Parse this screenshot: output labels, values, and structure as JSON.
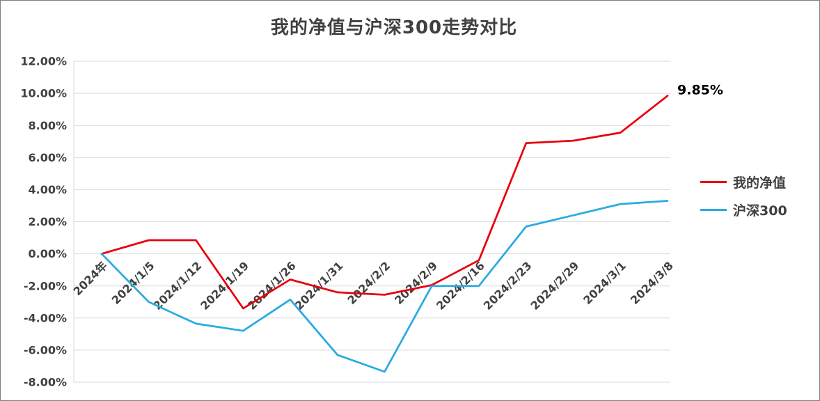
{
  "chart_data": {
    "type": "line",
    "title": "我的净值与沪深300走势对比",
    "categories": [
      "2024年",
      "2024/1/5",
      "2024/1/12",
      "2024/1/19",
      "2024/1/26",
      "2024/1/31",
      "2024/2/2",
      "2024/2/9",
      "2024/2/16",
      "2024/2/23",
      "2024/2/29",
      "2024/3/1",
      "2024/3/8"
    ],
    "series": [
      {
        "name": "我的净值",
        "color": "#e8000d",
        "values": [
          0,
          0.85,
          0.85,
          -3.4,
          -1.6,
          -2.4,
          -2.55,
          -1.95,
          -0.4,
          6.9,
          7.05,
          7.55,
          9.85
        ]
      },
      {
        "name": "沪深300",
        "color": "#29abe2",
        "values": [
          0,
          -3.0,
          -4.35,
          -4.8,
          -2.85,
          -6.3,
          -7.35,
          -2.0,
          -2.0,
          1.7,
          2.4,
          3.1,
          3.3
        ]
      }
    ],
    "ylim": [
      -8,
      12
    ],
    "ytick_step": 2,
    "ytick_labels": [
      "12.00%",
      "10.00%",
      "8.00%",
      "6.00%",
      "4.00%",
      "2.00%",
      "0.00%",
      "-2.00%",
      "-4.00%",
      "-6.00%",
      "-8.00%"
    ],
    "grid": true,
    "legend_position": "right",
    "end_label": {
      "series": "我的净值",
      "text": "9.85%"
    }
  },
  "legend": {
    "items": [
      {
        "label": "我的净值",
        "color": "#e8000d"
      },
      {
        "label": "沪深300",
        "color": "#29abe2"
      }
    ]
  },
  "colors": {
    "grid": "#d9d9d9",
    "axis": "#d9d9d9",
    "text": "#404040",
    "end_label": "#000000",
    "page_border": "#7f7f7f"
  }
}
